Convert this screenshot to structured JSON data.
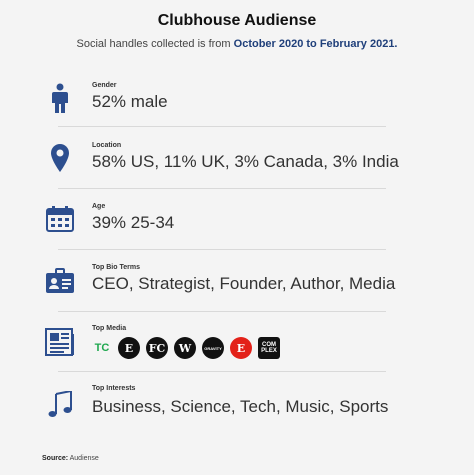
{
  "header": {
    "title": "Clubhouse Audiense",
    "subtitle_prefix": "Social handles collected is from ",
    "subtitle_range": "October 2020 to February 2021."
  },
  "rows": [
    {
      "icon": "person-icon",
      "label": "Gender",
      "value": "52% male"
    },
    {
      "icon": "location-pin-icon",
      "label": "Location",
      "value": "58% US, 11% UK, 3% Canada, 3% India"
    },
    {
      "icon": "calendar-icon",
      "label": "Age",
      "value": "39% 25-34"
    },
    {
      "icon": "id-card-icon",
      "label": "Top Bio Terms",
      "value": "CEO, Strategist, Founder, Author, Media"
    },
    {
      "icon": "newspaper-icon",
      "label": "Top Media",
      "value": ""
    },
    {
      "icon": "music-note-icon",
      "label": "Top Interests",
      "value": "Business, Science, Tech, Music, Sports"
    }
  ],
  "media_logos": [
    {
      "name": "techcrunch-logo",
      "text": "TC"
    },
    {
      "name": "entrepreneur-logo",
      "text": "E"
    },
    {
      "name": "fast-company-logo",
      "text": "FC"
    },
    {
      "name": "wired-logo",
      "text": "W"
    },
    {
      "name": "gravity-logo",
      "text": "GRAVITY"
    },
    {
      "name": "entrepreneur-red-logo",
      "text": "E"
    },
    {
      "name": "complex-logo",
      "text": "COM PLEX"
    }
  ],
  "colors": {
    "accent": "#1f3f7a",
    "icon": "#2d4f8f"
  },
  "footer": {
    "source_label": "Source:",
    "source_value": "Audiense"
  }
}
